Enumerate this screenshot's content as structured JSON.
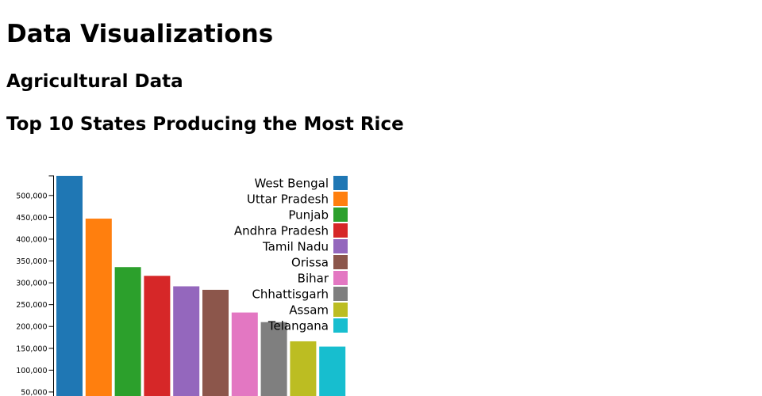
{
  "page": {
    "title": "Data Visualizations",
    "section": "Agricultural Data",
    "chart_heading": "Top 10 States Producing the Most Rice"
  },
  "chart_data": {
    "type": "bar",
    "title": "Top 10 States Producing the Most Rice",
    "xlabel": "",
    "ylabel": "",
    "categories": [
      "West Bengal",
      "Uttar Pradesh",
      "Punjab",
      "Andhra Pradesh",
      "Tamil Nadu",
      "Orissa",
      "Bihar",
      "Chhattisgarh",
      "Assam",
      "Telangana"
    ],
    "values": [
      545000,
      447000,
      336000,
      316000,
      292000,
      284000,
      232000,
      210000,
      166000,
      154000
    ],
    "colors": [
      "#1f77b4",
      "#ff7f0e",
      "#2ca02c",
      "#d62728",
      "#9467bd",
      "#8c564b",
      "#e377c2",
      "#7f7f7f",
      "#bcbd22",
      "#17becf"
    ],
    "yticks": [
      50000,
      100000,
      150000,
      200000,
      250000,
      300000,
      350000,
      400000,
      450000,
      500000
    ],
    "ytick_labels": [
      "50,000",
      "100,000",
      "150,000",
      "200,000",
      "250,000",
      "300,000",
      "350,000",
      "400,000",
      "450,000",
      "500,000"
    ],
    "ylim": [
      0,
      545000
    ],
    "legend_position": "top-right",
    "grid": false
  }
}
